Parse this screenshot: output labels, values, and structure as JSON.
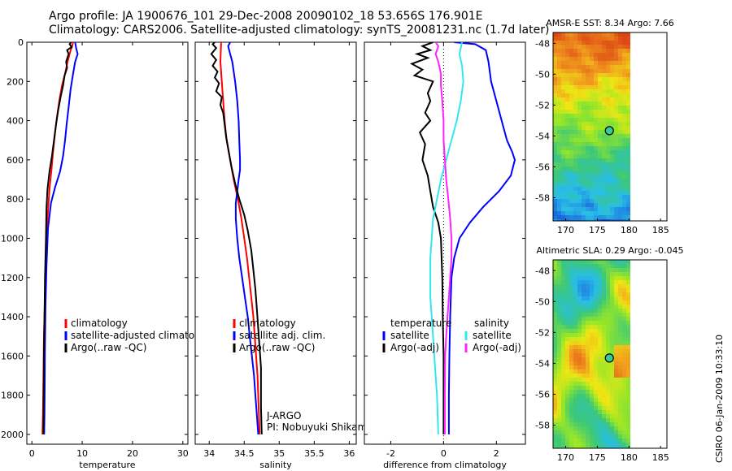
{
  "header": {
    "line1": "Argo profile: JA 1900676_101 29-Dec-2008 20090102_18 53.656S 176.901E",
    "line2": "Climatology: CARS2006. Satellite-adjusted climatology: synTS_20081231.nc (1.7d later)"
  },
  "stamp": "CSIRO 06-Jan-2009 10:33:10",
  "colors": {
    "climatology": "#ff0000",
    "satellite": "#0000ff",
    "argo": "#000000",
    "sal_satellite": "#33e6f0",
    "sal_argo": "#ff22ff"
  },
  "chart_data": [
    {
      "type": "line",
      "id": "temperature",
      "xlabel": "temperature",
      "xlim": [
        -1,
        31
      ],
      "ylim": [
        2050,
        0
      ],
      "xticks": [
        0,
        10,
        20,
        30
      ],
      "yticks": [
        0,
        200,
        400,
        600,
        800,
        1000,
        1200,
        1400,
        1600,
        1800,
        2000
      ],
      "legend": {
        "placement": "lower-right",
        "entries": [
          "climatology",
          "satellite-adjusted climatology",
          "Argo(..raw -QC)"
        ]
      },
      "series": [
        {
          "name": "climatology",
          "color": "#ff0000",
          "points": [
            [
              8.2,
              0
            ],
            [
              8,
              20
            ],
            [
              7.6,
              50
            ],
            [
              7.1,
              100
            ],
            [
              6.6,
              160
            ],
            [
              6,
              220
            ],
            [
              5.5,
              290
            ],
            [
              5,
              380
            ],
            [
              4.6,
              460
            ],
            [
              4.2,
              560
            ],
            [
              3.9,
              650
            ],
            [
              3.5,
              750
            ],
            [
              3.1,
              900
            ],
            [
              2.8,
              1100
            ],
            [
              2.6,
              1300
            ],
            [
              2.4,
              1500
            ],
            [
              2.3,
              1700
            ],
            [
              2.2,
              1900
            ],
            [
              2.1,
              2000
            ]
          ]
        },
        {
          "name": "satellite-adjusted climatology",
          "color": "#0000ff",
          "points": [
            [
              8.6,
              0
            ],
            [
              8.8,
              30
            ],
            [
              9.1,
              60
            ],
            [
              8.6,
              100
            ],
            [
              8.2,
              160
            ],
            [
              7.7,
              240
            ],
            [
              7.3,
              330
            ],
            [
              6.9,
              420
            ],
            [
              6.6,
              500
            ],
            [
              6.2,
              580
            ],
            [
              5.6,
              660
            ],
            [
              4.6,
              740
            ],
            [
              3.8,
              820
            ],
            [
              3.2,
              950
            ],
            [
              2.9,
              1150
            ],
            [
              2.7,
              1350
            ],
            [
              2.6,
              1550
            ],
            [
              2.55,
              1750
            ],
            [
              2.5,
              1900
            ],
            [
              2.45,
              2000
            ]
          ]
        },
        {
          "name": "Argo(..raw -QC)",
          "color": "#000000",
          "points": [
            [
              7.8,
              0
            ],
            [
              7.5,
              10
            ],
            [
              7.9,
              25
            ],
            [
              7,
              40
            ],
            [
              7.3,
              60
            ],
            [
              6.8,
              100
            ],
            [
              7,
              130
            ],
            [
              6.5,
              170
            ],
            [
              6.2,
              220
            ],
            [
              5.7,
              280
            ],
            [
              5.2,
              350
            ],
            [
              4.8,
              420
            ],
            [
              4.4,
              500
            ],
            [
              4,
              580
            ],
            [
              3.5,
              660
            ],
            [
              3.1,
              750
            ],
            [
              2.9,
              850
            ],
            [
              2.8,
              1000
            ],
            [
              2.6,
              1200
            ],
            [
              2.5,
              1400
            ],
            [
              2.4,
              1600
            ],
            [
              2.35,
              1800
            ],
            [
              2.3,
              2000
            ]
          ]
        }
      ]
    },
    {
      "type": "line",
      "id": "salinity",
      "xlabel": "salinity",
      "xlim": [
        33.8,
        36.1
      ],
      "ylim": [
        2050,
        0
      ],
      "xticks": [
        34,
        34.5,
        35,
        35.5,
        36
      ],
      "legend": {
        "placement": "lower-right",
        "entries": [
          "climatology",
          "satellite adj. clim.",
          "Argo(..raw -QC)"
        ]
      },
      "annotation": [
        "J-ARGO",
        "PI: Nobuyuki Shikama"
      ],
      "series": [
        {
          "name": "climatology",
          "color": "#ff0000",
          "points": [
            [
              34.17,
              0
            ],
            [
              34.16,
              100
            ],
            [
              34.18,
              200
            ],
            [
              34.2,
              300
            ],
            [
              34.22,
              400
            ],
            [
              34.25,
              500
            ],
            [
              34.3,
              600
            ],
            [
              34.35,
              700
            ],
            [
              34.41,
              800
            ],
            [
              34.46,
              900
            ],
            [
              34.5,
              1000
            ],
            [
              34.54,
              1100
            ],
            [
              34.57,
              1200
            ],
            [
              34.6,
              1300
            ],
            [
              34.63,
              1400
            ],
            [
              34.65,
              1500
            ],
            [
              34.67,
              1600
            ],
            [
              34.69,
              1700
            ],
            [
              34.7,
              1800
            ],
            [
              34.71,
              1900
            ],
            [
              34.72,
              2000
            ]
          ]
        },
        {
          "name": "satellite adj. clim.",
          "color": "#0000ff",
          "points": [
            [
              34.3,
              0
            ],
            [
              34.27,
              20
            ],
            [
              34.3,
              60
            ],
            [
              34.33,
              100
            ],
            [
              34.37,
              200
            ],
            [
              34.4,
              300
            ],
            [
              34.42,
              400
            ],
            [
              34.43,
              500
            ],
            [
              34.44,
              600
            ],
            [
              34.44,
              650
            ],
            [
              34.42,
              700
            ],
            [
              34.4,
              760
            ],
            [
              34.38,
              820
            ],
            [
              34.38,
              900
            ],
            [
              34.4,
              1000
            ],
            [
              34.43,
              1100
            ],
            [
              34.47,
              1200
            ],
            [
              34.51,
              1300
            ],
            [
              34.55,
              1400
            ],
            [
              34.58,
              1500
            ],
            [
              34.61,
              1600
            ],
            [
              34.64,
              1700
            ],
            [
              34.66,
              1800
            ],
            [
              34.68,
              1900
            ],
            [
              34.7,
              2000
            ]
          ]
        },
        {
          "name": "Argo(..raw -QC)",
          "color": "#000000",
          "points": [
            [
              34.08,
              0
            ],
            [
              34.05,
              10
            ],
            [
              34.1,
              30
            ],
            [
              34.03,
              60
            ],
            [
              34.1,
              90
            ],
            [
              34.05,
              120
            ],
            [
              34.12,
              150
            ],
            [
              34.08,
              180
            ],
            [
              34.14,
              210
            ],
            [
              34.1,
              250
            ],
            [
              34.18,
              280
            ],
            [
              34.16,
              320
            ],
            [
              34.2,
              360
            ],
            [
              34.22,
              420
            ],
            [
              34.24,
              480
            ],
            [
              34.28,
              560
            ],
            [
              34.32,
              640
            ],
            [
              34.37,
              720
            ],
            [
              34.43,
              800
            ],
            [
              34.5,
              880
            ],
            [
              34.55,
              960
            ],
            [
              34.6,
              1060
            ],
            [
              34.63,
              1160
            ],
            [
              34.66,
              1260
            ],
            [
              34.68,
              1360
            ],
            [
              34.7,
              1460
            ],
            [
              34.72,
              1560
            ],
            [
              34.74,
              1660
            ],
            [
              34.74,
              1760
            ],
            [
              34.74,
              1860
            ],
            [
              34.75,
              2000
            ]
          ]
        }
      ]
    },
    {
      "type": "line",
      "id": "difference",
      "xlabel": "difference from climatology",
      "xlim": [
        -3,
        3.1
      ],
      "ylim": [
        2050,
        0
      ],
      "xticks": [
        -2,
        0,
        2
      ],
      "legend": {
        "placement": "lower-center",
        "groups": [
          {
            "title": "temperature",
            "entries": [
              "satellite",
              "Argo(-adj)"
            ]
          },
          {
            "title": "salinity",
            "entries": [
              "satellite",
              "Argo(-adj)"
            ]
          }
        ]
      },
      "series": [
        {
          "name": "temperature satellite",
          "color": "#0000ff",
          "points": [
            [
              0.4,
              0
            ],
            [
              1.2,
              10
            ],
            [
              1.6,
              40
            ],
            [
              1.7,
              100
            ],
            [
              1.8,
              200
            ],
            [
              2,
              300
            ],
            [
              2.2,
              400
            ],
            [
              2.4,
              500
            ],
            [
              2.6,
              560
            ],
            [
              2.7,
              600
            ],
            [
              2.55,
              680
            ],
            [
              2.1,
              760
            ],
            [
              1.5,
              840
            ],
            [
              1,
              920
            ],
            [
              0.6,
              1000
            ],
            [
              0.4,
              1100
            ],
            [
              0.3,
              1200
            ],
            [
              0.25,
              1400
            ],
            [
              0.22,
              1600
            ],
            [
              0.2,
              1800
            ],
            [
              0.2,
              2000
            ]
          ]
        },
        {
          "name": "temperature Argo(-adj)",
          "color": "#000000",
          "points": [
            [
              -0.4,
              0
            ],
            [
              -0.8,
              20
            ],
            [
              -0.5,
              40
            ],
            [
              -1,
              60
            ],
            [
              -0.6,
              80
            ],
            [
              -1.2,
              110
            ],
            [
              -0.8,
              140
            ],
            [
              -1.1,
              170
            ],
            [
              -0.4,
              200
            ],
            [
              -0.6,
              260
            ],
            [
              -0.5,
              300
            ],
            [
              -0.7,
              360
            ],
            [
              -0.5,
              400
            ],
            [
              -0.9,
              460
            ],
            [
              -0.7,
              520
            ],
            [
              -0.8,
              600
            ],
            [
              -0.6,
              680
            ],
            [
              -0.5,
              760
            ],
            [
              -0.4,
              840
            ],
            [
              -0.2,
              920
            ],
            [
              -0.1,
              1000
            ],
            [
              -0.05,
              1200
            ],
            [
              -0.03,
              1400
            ],
            [
              0,
              1600
            ],
            [
              0,
              1800
            ],
            [
              0,
              2000
            ]
          ]
        },
        {
          "name": "salinity satellite",
          "color": "#33e6f0",
          "points": [
            [
              0.7,
              0
            ],
            [
              0.6,
              60
            ],
            [
              0.7,
              120
            ],
            [
              0.75,
              200
            ],
            [
              0.65,
              300
            ],
            [
              0.5,
              400
            ],
            [
              0.3,
              500
            ],
            [
              0.1,
              600
            ],
            [
              -0.1,
              700
            ],
            [
              -0.25,
              800
            ],
            [
              -0.4,
              900
            ],
            [
              -0.45,
              1000
            ],
            [
              -0.5,
              1100
            ],
            [
              -0.5,
              1200
            ],
            [
              -0.5,
              1300
            ],
            [
              -0.45,
              1400
            ],
            [
              -0.4,
              1500
            ],
            [
              -0.35,
              1600
            ],
            [
              -0.3,
              1700
            ],
            [
              -0.25,
              1800
            ],
            [
              -0.2,
              2000
            ]
          ]
        },
        {
          "name": "salinity Argo(-adj)",
          "color": "#ff22ff",
          "points": [
            [
              -0.3,
              0
            ],
            [
              -0.2,
              20
            ],
            [
              -0.3,
              60
            ],
            [
              -0.2,
              100
            ],
            [
              -0.1,
              160
            ],
            [
              -0.1,
              220
            ],
            [
              -0.05,
              300
            ],
            [
              0,
              400
            ],
            [
              0,
              500
            ],
            [
              0.05,
              600
            ],
            [
              0.1,
              700
            ],
            [
              0.18,
              800
            ],
            [
              0.25,
              900
            ],
            [
              0.3,
              1000
            ],
            [
              0.3,
              1100
            ],
            [
              0.25,
              1200
            ],
            [
              0.2,
              1300
            ],
            [
              0.15,
              1400
            ],
            [
              0.1,
              1500
            ],
            [
              0.06,
              1600
            ],
            [
              0.05,
              1800
            ],
            [
              0.05,
              2000
            ]
          ]
        }
      ]
    },
    {
      "type": "heatmap",
      "id": "sst-map",
      "title": "AMSR-E SST: 8.34 Argo: 7.66",
      "xlim": [
        168,
        186
      ],
      "ylim": [
        -59.5,
        -47.3
      ],
      "xticks": [
        170,
        175,
        180,
        185
      ],
      "yticks": [
        -48,
        -50,
        -52,
        -54,
        -56,
        -58
      ],
      "marker": {
        "lon": 176.901,
        "lat": -53.656
      }
    },
    {
      "type": "heatmap",
      "id": "sla-map",
      "title": "Altimetric SLA: 0.29 Argo: -0.045",
      "xlim": [
        168,
        186
      ],
      "ylim": [
        -59.5,
        -47.3
      ],
      "xticks": [
        170,
        175,
        180,
        185
      ],
      "yticks": [
        -48,
        -50,
        -52,
        -54,
        -56,
        -58
      ],
      "marker": {
        "lon": 176.901,
        "lat": -53.656
      }
    }
  ]
}
